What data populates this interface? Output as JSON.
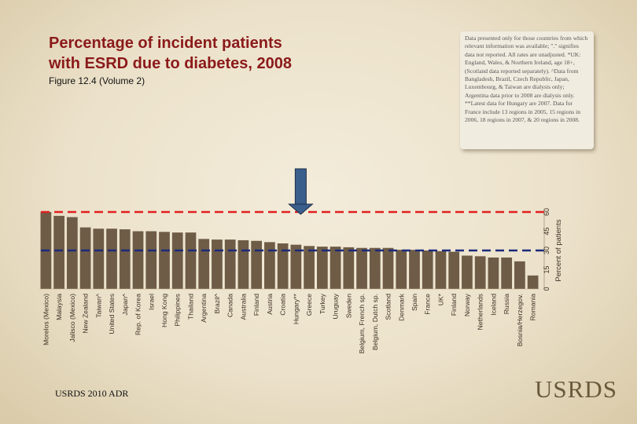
{
  "slide": {
    "title_line1": "Percentage of incident patients",
    "title_line2": "with ESRD due to diabetes, 2008",
    "subtitle": "Figure 12.4 (Volume 2)",
    "notes": "Data presented only for those countries from which relevant information was available; \".\" signifies data not reported. All rates are unadjusted. *UK: England, Wales, & Northern Ireland, age 18+, (Scotland data reported separately). ^Data from Bangladesh, Brazil, Czech Republic, Japan, Luxembourg, & Taiwan are dialysis only; Argentina data prior to 2008 are dialysis only. **Latest data for Hungary are 2007. Data for France include 13 regions in 2005, 15 regions in 2006, 18 regions in 2007, & 20 regions in 2008.",
    "footer": "USRDS 2010 ADR",
    "logo": "USRDS"
  },
  "colors": {
    "bar": "#6e5c46",
    "red_line": "#e02020",
    "blue_line": "#1c2a7a",
    "arrow": "#3a5f8c",
    "title": "#8b1a1a"
  },
  "chart_data": {
    "type": "bar",
    "title": "Percentage of incident patients with ESRD due to diabetes, 2008",
    "ylabel": "Percent of patients",
    "ylim": [
      0,
      60
    ],
    "yticks": [
      0,
      15,
      30,
      45,
      60
    ],
    "categories": [
      "Morelos (Mexico)",
      "Malaysia",
      "Jalisco (Mexico)",
      "New Zealand",
      "Taiwan^",
      "United States",
      "Japan^",
      "Rep. of Korea",
      "Israel",
      "Hong Kong",
      "Philippines",
      "Thailand",
      "Argentina",
      "Brazil^",
      "Canada",
      "Australia",
      "Finland",
      "Austria",
      "Croatia",
      "Hungary**",
      "Greece",
      "Turkey",
      "Uruguay",
      "Sweden",
      "Belgium, French sp.",
      "Belgium, Dutch sp.",
      "Scotland",
      "Denmark",
      "Spain",
      "France",
      "UK*",
      "Finland",
      "Norway",
      "Netherlands",
      "Iceland",
      "Russia",
      "Bosnia/Herzegov.",
      "Romania"
    ],
    "values": [
      60,
      57,
      56,
      48,
      47,
      47,
      46.5,
      45,
      45,
      44.5,
      44,
      44,
      39,
      38.5,
      38.5,
      38,
      37.5,
      36.5,
      35.5,
      34.5,
      33.5,
      33,
      33,
      32.5,
      32,
      32,
      32,
      30.5,
      30.5,
      30,
      29.5,
      29,
      26,
      25.5,
      24.5,
      24.5,
      21.5,
      10.5
    ],
    "reference_lines": [
      {
        "name": "upper-reference",
        "value": 60
      },
      {
        "name": "lower-reference",
        "value": 30
      }
    ],
    "highlight_category": "Hungary**"
  }
}
